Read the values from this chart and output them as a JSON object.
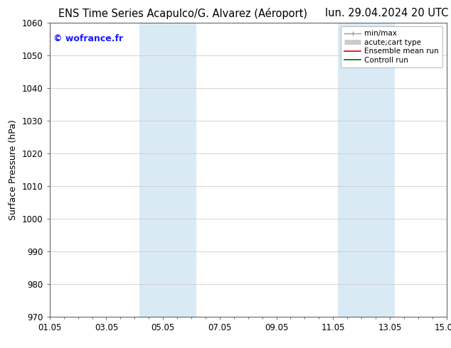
{
  "title_left": "ENS Time Series Acapulco/G. Alvarez (Aéroport)",
  "title_right": "lun. 29.04.2024 20 UTC",
  "ylabel": "Surface Pressure (hPa)",
  "ylim": [
    970,
    1060
  ],
  "yticks": [
    970,
    980,
    990,
    1000,
    1010,
    1020,
    1030,
    1040,
    1050,
    1060
  ],
  "xtick_labels": [
    "01.05",
    "03.05",
    "05.05",
    "07.05",
    "09.05",
    "11.05",
    "13.05",
    "15.05"
  ],
  "xtick_positions": [
    0,
    2,
    4,
    6,
    8,
    10,
    12,
    14
  ],
  "xlim": [
    0,
    14
  ],
  "shaded_regions": [
    {
      "xmin": 3.17,
      "xmax": 5.17,
      "color": "#daeaf5"
    },
    {
      "xmin": 10.17,
      "xmax": 12.17,
      "color": "#daeaf5"
    }
  ],
  "watermark_text": "© wofrance.fr",
  "watermark_color": "#1a1aff",
  "legend_items": [
    {
      "label": "min/max",
      "color": "#999999",
      "lw": 1.0
    },
    {
      "label": "acute;cart type",
      "color": "#cccccc",
      "lw": 5
    },
    {
      "label": "Ensemble mean run",
      "color": "#dd0000",
      "lw": 1.2
    },
    {
      "label": "Controll run",
      "color": "#006600",
      "lw": 1.2
    }
  ],
  "bg_color": "#ffffff",
  "grid_color": "#cccccc",
  "title_fontsize": 10.5,
  "axis_label_fontsize": 9,
  "tick_fontsize": 8.5,
  "watermark_fontsize": 9
}
